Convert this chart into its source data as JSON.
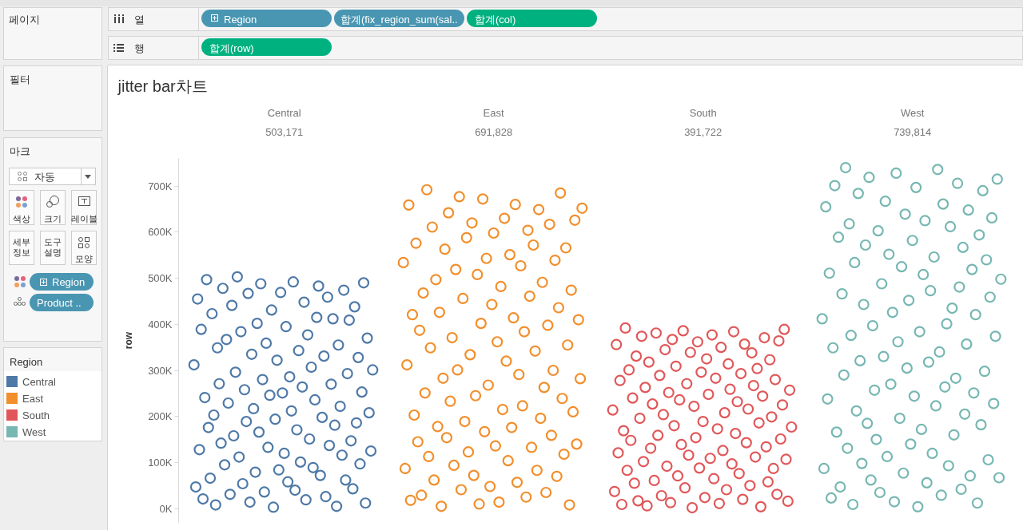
{
  "chart_data": {
    "type": "scatter",
    "title": "jitter bar차트",
    "ylabel": "row",
    "tick_labels": true,
    "marker": "circle",
    "legend": "left",
    "legend_title": "Region",
    "categories": [
      null,
      null,
      null,
      null,
      null,
      null,
      null,
      null,
      null,
      null,
      null,
      null,
      null,
      null,
      null,
      null,
      null,
      null,
      null,
      null,
      null,
      null,
      null,
      null,
      null,
      null,
      null,
      null,
      null,
      null,
      null,
      null,
      null,
      null,
      null,
      null,
      null,
      null,
      null,
      null,
      null,
      null,
      null,
      null,
      null,
      null,
      null,
      null,
      null,
      null,
      null,
      null,
      null,
      null,
      null,
      null,
      null,
      null,
      "Central\n503,171",
      null,
      null,
      null,
      null,
      null,
      null,
      null,
      null,
      null,
      null,
      null,
      null,
      null,
      null,
      null,
      null,
      null,
      null,
      null,
      null,
      null,
      null,
      null,
      null,
      null,
      null,
      null,
      null,
      null,
      null,
      null,
      null,
      null,
      null,
      null,
      null,
      null,
      null,
      null,
      null,
      null,
      null,
      null,
      null,
      null,
      null,
      null,
      null,
      null,
      null,
      null,
      null,
      null,
      null,
      null,
      null,
      null,
      null,
      null,
      null,
      null,
      null,
      null,
      null,
      null,
      null,
      null,
      null,
      null,
      null,
      null,
      null,
      null,
      null,
      null,
      null,
      null,
      null,
      null,
      null,
      null,
      null,
      null,
      null,
      null,
      null,
      null,
      null,
      null,
      null,
      null,
      null,
      null,
      null,
      null,
      null,
      null,
      null,
      null,
      null,
      null,
      null,
      null,
      null,
      null,
      null,
      null,
      null,
      null,
      null,
      null,
      null,
      null,
      null,
      null,
      "East\n691,828",
      null,
      null,
      null,
      null,
      null,
      null,
      null,
      null,
      null,
      null,
      null,
      null,
      null,
      null,
      null,
      null,
      null,
      null,
      null,
      null,
      null,
      null,
      null,
      null,
      null,
      null,
      null,
      null,
      null,
      null,
      null,
      null,
      null,
      null,
      null,
      null,
      null,
      null,
      null,
      null,
      null,
      null,
      null,
      null,
      null,
      null,
      null,
      null,
      null,
      null,
      null,
      null,
      null,
      null,
      null,
      null,
      null,
      null,
      null,
      null,
      null,
      null,
      null,
      null,
      null,
      null,
      null,
      null,
      null,
      null,
      null,
      null,
      null,
      null,
      null,
      null,
      null,
      null,
      null,
      null,
      null,
      null,
      null,
      null,
      null,
      null,
      null,
      null,
      null,
      null,
      null,
      null,
      null,
      null,
      null,
      null,
      null,
      null,
      null,
      null,
      null,
      null,
      null,
      null,
      null,
      null,
      null,
      null,
      null,
      null,
      null,
      null,
      null,
      null,
      null,
      "South\n391,722",
      null,
      null,
      null,
      null,
      null,
      null,
      null,
      null,
      null,
      null,
      null,
      null,
      null,
      null,
      null,
      null,
      null,
      null,
      null,
      null,
      null,
      null,
      null,
      null,
      null,
      null,
      null,
      null,
      null,
      null,
      null,
      null,
      null,
      null,
      null,
      null,
      null,
      null,
      null,
      null,
      null,
      null,
      null,
      null,
      null,
      null,
      null,
      null,
      null,
      null,
      null,
      null,
      null,
      null,
      null,
      null,
      null,
      null,
      null,
      null,
      null,
      null,
      null,
      null,
      null,
      null,
      null,
      null,
      null,
      null,
      null,
      null,
      null,
      null,
      null,
      null,
      null,
      null,
      null,
      null,
      null,
      null,
      null,
      null,
      null,
      null,
      null,
      null,
      null,
      null,
      null,
      null,
      null,
      null,
      null,
      null,
      null,
      null,
      null,
      null,
      null,
      null,
      null,
      null,
      null,
      null,
      null,
      null,
      null,
      null,
      null,
      null,
      null,
      null,
      null,
      "West\n739,814",
      null,
      null,
      null,
      null,
      null,
      null,
      null,
      null,
      null,
      null,
      null,
      null,
      null,
      null,
      null,
      null,
      null,
      null,
      null,
      null,
      null,
      null,
      null,
      null,
      null,
      null,
      null,
      null,
      null,
      null,
      null,
      null,
      null,
      null,
      null,
      null,
      null,
      null,
      null,
      null,
      null,
      null,
      null,
      null,
      null,
      null,
      null,
      null,
      null,
      null,
      null,
      null,
      null,
      null,
      null,
      null,
      null
    ],
    "ylim": [
      -30000,
      760000
    ],
    "yticks": [
      {
        "value": 0,
        "label": "0K"
      },
      {
        "value": 100000,
        "label": "100K"
      },
      {
        "value": 200000,
        "label": "200K"
      },
      {
        "value": 300000,
        "label": "300K"
      },
      {
        "value": 400000,
        "label": "400K"
      },
      {
        "value": 500000,
        "label": "500K"
      },
      {
        "value": 600000,
        "label": "600K"
      },
      {
        "value": 700000,
        "label": "700K"
      }
    ],
    "series": [
      {
        "name": "Central",
        "color": "#4e79a7",
        "values": [
          null,
          null,
          null,
          null,
          null,
          null,
          null,
          null,
          312000,
          47000,
          455000,
          128000,
          389000,
          21000,
          241000,
          497000,
          176000,
          66000,
          423000,
          203000,
          8000,
          349000,
          271000,
          142000,
          478000,
          95000,
          367000,
          229000,
          31000,
          441000,
          158000,
          296000,
          503000,
          112000,
          384000,
          54000,
          258000,
          189000,
          467000,
          14000,
          335000,
          217000,
          79000,
          402000,
          166000,
          488000,
          280000,
          36000,
          359000,
          133000,
          246000,
          431000,
          3000,
          194000,
          322000,
          84000,
          469000,
          251000,
          120000,
          395000,
          58000,
          286000,
          212000,
          492000,
          40000,
          171000,
          343000,
          101000,
          264000,
          448000,
          19000,
          377000,
          151000,
          307000,
          89000,
          236000,
          415000,
          483000,
          72000,
          198000,
          331000,
          26000,
          459000,
          137000,
          270000,
          412000,
          181000,
          5000,
          355000,
          222000,
          116000,
          474000,
          62000,
          293000,
          409000,
          147000,
          43000,
          438000,
          186000,
          328000,
          97000,
          253000,
          490000,
          12000,
          370000,
          208000,
          125000,
          301000,
          null,
          null,
          null,
          null,
          null,
          null,
          null,
          null,
          null,
          null,
          null,
          null,
          null,
          null,
          null,
          null,
          null,
          null,
          null,
          null,
          null,
          null,
          null,
          null,
          null,
          null,
          null,
          null,
          null,
          null,
          null,
          null,
          null,
          null,
          null,
          null,
          null,
          null,
          null,
          null,
          null,
          null,
          null,
          null,
          null,
          null,
          null,
          null,
          null,
          null,
          null,
          null,
          null,
          null,
          null,
          null,
          null,
          null,
          null,
          null,
          null,
          null,
          null,
          null,
          null,
          null,
          null,
          null,
          null,
          null,
          null,
          null,
          null,
          null,
          null,
          null,
          null,
          null,
          null,
          null,
          null,
          null,
          null,
          null,
          null,
          null,
          null,
          null,
          null,
          null,
          null,
          null,
          null,
          null,
          null,
          null,
          null,
          null,
          null,
          null,
          null,
          null,
          null,
          null,
          null,
          null,
          null,
          null,
          null,
          null,
          null,
          null,
          null,
          null,
          null,
          null,
          null,
          null,
          null,
          null,
          null,
          null,
          null,
          null,
          null,
          null,
          null,
          null,
          null,
          null,
          null,
          null,
          null,
          null,
          null,
          null,
          null,
          null,
          null,
          null,
          null,
          null,
          null,
          null,
          null,
          null,
          null,
          null,
          null,
          null,
          null,
          null,
          null,
          null,
          null,
          null,
          null,
          null,
          null,
          null,
          null,
          null,
          null,
          null,
          null,
          null,
          null,
          null,
          null,
          null,
          null,
          null,
          null,
          null,
          null,
          null,
          null,
          null,
          null,
          null,
          null,
          null,
          null,
          null,
          null,
          null,
          null,
          null,
          null,
          null,
          null,
          null,
          null,
          null,
          null,
          null,
          null,
          null,
          null,
          null,
          null,
          null,
          null,
          null,
          null,
          null,
          null,
          null,
          null,
          null,
          null,
          null,
          null,
          null,
          null,
          null,
          null,
          null,
          null,
          null,
          null,
          null,
          null,
          null,
          null,
          null,
          null,
          null,
          null,
          null,
          null,
          null,
          null,
          null,
          null,
          null,
          null,
          null,
          null,
          null,
          null,
          null,
          null,
          null,
          null,
          null,
          null,
          null,
          null,
          null,
          null,
          null,
          null,
          null,
          null,
          null,
          null,
          null,
          null,
          null,
          null,
          null,
          null,
          null,
          null,
          null,
          null,
          null,
          null,
          null,
          null,
          null,
          null,
          null,
          null,
          null,
          null,
          null,
          null,
          null,
          null,
          null,
          null,
          null,
          null,
          null,
          null,
          null,
          null,
          null,
          null,
          null,
          null,
          null,
          null,
          null,
          null,
          null,
          null,
          null,
          null,
          null,
          null,
          null,
          null,
          null,
          null,
          null,
          null,
          null,
          null,
          null,
          null,
          null,
          null,
          null,
          null,
          null,
          null,
          null,
          null,
          null,
          null,
          null,
          null,
          null,
          null,
          null,
          null,
          null,
          null,
          null,
          null,
          null,
          null,
          null,
          null,
          null,
          null,
          null,
          null,
          null,
          null,
          null,
          null,
          null,
          null,
          null,
          null,
          null,
          null,
          null,
          null,
          null,
          null,
          null
        ]
      },
      {
        "name": "East",
        "color": "#f28e2b",
        "values": [
          null,
          null,
          null,
          null,
          null,
          null,
          null,
          null,
          null,
          null,
          null,
          null,
          null,
          null,
          null,
          null,
          null,
          null,
          null,
          null,
          null,
          null,
          null,
          null,
          null,
          null,
          null,
          null,
          null,
          null,
          null,
          null,
          null,
          null,
          null,
          null,
          null,
          null,
          null,
          null,
          null,
          null,
          null,
          null,
          null,
          null,
          null,
          null,
          null,
          null,
          null,
          null,
          null,
          null,
          null,
          null,
          null,
          null,
          null,
          null,
          null,
          null,
          null,
          null,
          null,
          null,
          null,
          null,
          null,
          null,
          null,
          null,
          null,
          null,
          null,
          null,
          null,
          null,
          null,
          null,
          null,
          null,
          null,
          null,
          null,
          null,
          null,
          null,
          null,
          null,
          null,
          null,
          null,
          null,
          null,
          null,
          null,
          null,
          null,
          null,
          null,
          null,
          null,
          null,
          null,
          null,
          null,
          null,
          null,
          null,
          null,
          null,
          null,
          null,
          null,
          null,
          null,
          null,
          null,
          null,
          null,
          null,
          null,
          null,
          534000,
          87000,
          312000,
          659000,
          18000,
          421000,
          203000,
          576000,
          145000,
          387000,
          29000,
          468000,
          251000,
          692000,
          113000,
          349000,
          611000,
          62000,
          497000,
          178000,
          426000,
          5000,
          283000,
          563000,
          154000,
          642000,
          233000,
          371000,
          94000,
          519000,
          301000,
          677000,
          41000,
          456000,
          189000,
          588000,
          123000,
          334000,
          620000,
          72000,
          245000,
          508000,
          10000,
          402000,
          672000,
          167000,
          543000,
          268000,
          48000,
          443000,
          598000,
          136000,
          362000,
          14000,
          482000,
          215000,
          630000,
          320000,
          104000,
          551000,
          176000,
          414000,
          660000,
          57000,
          291000,
          527000,
          223000,
          384000,
          25000,
          604000,
          461000,
          133000,
          572000,
          342000,
          83000,
          649000,
          196000,
          491000,
          263000,
          35000,
          398000,
          617000,
          159000,
          300000,
          539000,
          70000,
          436000,
          685000,
          239000,
          118000,
          566000,
          355000,
          8000,
          474000,
          210000,
          626000,
          140000,
          410000,
          282000,
          652000,
          null,
          null,
          null,
          null,
          null,
          null,
          null,
          null,
          null,
          null,
          null,
          null,
          null,
          null,
          null,
          null,
          null,
          null,
          null,
          null,
          null,
          null,
          null,
          null,
          null,
          null,
          null,
          null,
          null,
          null,
          null,
          null,
          null,
          null,
          null,
          null,
          null,
          null,
          null,
          null,
          null,
          null,
          null,
          null,
          null,
          null,
          null,
          null,
          null,
          null,
          null,
          null,
          null,
          null,
          null,
          null,
          null,
          null,
          null,
          null,
          null,
          null,
          null,
          null,
          null,
          null,
          null,
          null,
          null,
          null,
          null,
          null,
          null,
          null,
          null,
          null,
          null,
          null,
          null,
          null,
          null,
          null,
          null,
          null,
          null,
          null,
          null,
          null,
          null,
          null,
          null,
          null,
          null,
          null,
          null,
          null,
          null,
          null,
          null,
          null,
          null,
          null,
          null,
          null,
          null,
          null,
          null,
          null,
          null,
          null,
          null,
          null,
          null,
          null,
          null,
          null,
          null,
          null,
          null,
          null,
          null,
          null,
          null,
          null,
          null,
          null,
          null,
          null,
          null,
          null,
          null,
          null,
          null,
          null,
          null,
          null,
          null,
          null,
          null,
          null,
          null,
          null,
          null,
          null,
          null,
          null,
          null,
          null,
          null,
          null,
          null,
          null,
          null,
          null,
          null,
          null,
          null,
          null,
          null,
          null,
          null,
          null,
          null,
          null,
          null,
          null,
          null,
          null,
          null,
          null,
          null,
          null,
          null,
          null,
          null,
          null,
          null,
          null,
          null,
          null,
          null,
          null,
          null,
          null,
          null,
          null,
          null,
          null,
          null,
          null,
          null,
          null,
          null,
          null,
          null,
          null,
          null,
          null,
          null,
          null,
          null,
          null,
          null,
          null,
          null,
          null,
          null,
          null,
          null,
          null,
          null,
          null,
          null,
          null,
          null,
          null,
          null,
          null,
          null,
          null,
          null,
          null,
          null,
          null,
          null,
          null,
          null,
          null,
          null,
          null,
          null,
          null,
          null,
          null,
          null,
          null,
          null,
          null,
          null,
          null
        ]
      },
      {
        "name": "South",
        "color": "#e15759",
        "values": [
          null,
          null,
          null,
          null,
          null,
          null,
          null,
          null,
          null,
          null,
          null,
          null,
          null,
          null,
          null,
          null,
          null,
          null,
          null,
          null,
          null,
          null,
          null,
          null,
          null,
          null,
          null,
          null,
          null,
          null,
          null,
          null,
          null,
          null,
          null,
          null,
          null,
          null,
          null,
          null,
          null,
          null,
          null,
          null,
          null,
          null,
          null,
          null,
          null,
          null,
          null,
          null,
          null,
          null,
          null,
          null,
          null,
          null,
          null,
          null,
          null,
          null,
          null,
          null,
          null,
          null,
          null,
          null,
          null,
          null,
          null,
          null,
          null,
          null,
          null,
          null,
          null,
          null,
          null,
          null,
          null,
          null,
          null,
          null,
          null,
          null,
          null,
          null,
          null,
          null,
          null,
          null,
          null,
          null,
          null,
          null,
          null,
          null,
          null,
          null,
          null,
          null,
          null,
          null,
          null,
          null,
          null,
          null,
          null,
          null,
          null,
          null,
          null,
          null,
          null,
          null,
          null,
          null,
          null,
          null,
          null,
          null,
          null,
          null,
          null,
          null,
          null,
          null,
          null,
          null,
          null,
          null,
          null,
          null,
          null,
          null,
          null,
          null,
          null,
          null,
          null,
          null,
          null,
          null,
          null,
          null,
          null,
          null,
          null,
          null,
          null,
          null,
          null,
          null,
          null,
          null,
          null,
          null,
          null,
          null,
          null,
          null,
          null,
          null,
          null,
          null,
          null,
          null,
          null,
          null,
          null,
          null,
          null,
          null,
          null,
          null,
          null,
          null,
          null,
          null,
          null,
          null,
          null,
          null,
          null,
          null,
          null,
          null,
          null,
          null,
          null,
          null,
          null,
          null,
          null,
          null,
          null,
          null,
          null,
          null,
          null,
          null,
          null,
          null,
          null,
          null,
          null,
          null,
          null,
          null,
          null,
          null,
          null,
          null,
          null,
          null,
          null,
          null,
          null,
          null,
          null,
          null,
          null,
          null,
          null,
          null,
          null,
          null,
          null,
          null,
          null,
          null,
          null,
          null,
          null,
          null,
          null,
          null,
          null,
          null,
          214000,
          37000,
          356000,
          121000,
          278000,
          9000,
          169000,
          392000,
          83000,
          301000,
          148000,
          240000,
          55000,
          331000,
          17000,
          196000,
          374000,
          102000,
          263000,
          6000,
          318000,
          131000,
          227000,
          61000,
          381000,
          159000,
          289000,
          28000,
          204000,
          345000,
          92000,
          252000,
          13000,
          367000,
          180000,
          309000,
          71000,
          236000,
          139000,
          386000,
          45000,
          271000,
          116000,
          339000,
          2000,
          222000,
          154000,
          362000,
          88000,
          296000,
          189000,
          24000,
          325000,
          248000,
          109000,
          377000,
          65000,
          283000,
          173000,
          11000,
          350000,
          126000,
          208000,
          41000,
          314000,
          259000,
          97000,
          384000,
          163000,
          232000,
          76000,
          293000,
          20000,
          357000,
          143000,
          216000,
          50000,
          338000,
          267000,
          112000,
          304000,
          186000,
          4000,
          244000,
          371000,
          134000,
          58000,
          323000,
          199000,
          87000,
          280000,
          31000,
          364000,
          151000,
          225000,
          389000,
          107000,
          16000,
          257000,
          177000,
          null,
          null,
          null,
          null,
          null,
          null,
          null,
          null,
          null,
          null,
          null,
          null,
          null,
          null,
          null,
          null,
          null,
          null,
          null,
          null,
          null,
          null,
          null,
          null,
          null,
          null,
          null,
          null,
          null,
          null,
          null,
          null,
          null,
          null,
          null,
          null,
          null,
          null,
          null,
          null,
          null,
          null,
          null,
          null,
          null,
          null,
          null,
          null,
          null,
          null,
          null,
          null,
          null,
          null,
          null,
          null,
          null,
          null,
          null,
          null,
          null,
          null,
          null,
          null,
          null,
          null,
          null,
          null,
          null,
          null,
          null,
          null,
          null,
          null,
          null,
          null,
          null,
          null,
          null,
          null,
          null,
          null,
          null,
          null,
          null,
          null,
          null,
          null,
          null,
          null,
          null,
          null,
          null,
          null,
          null,
          null,
          null,
          null,
          null,
          null,
          null,
          null,
          null,
          null,
          null,
          null,
          null,
          null,
          null,
          null,
          null,
          null,
          null,
          null,
          null,
          null,
          null,
          null,
          null,
          null,
          null,
          null,
          null,
          null
        ]
      },
      {
        "name": "West",
        "color": "#76b7b2",
        "values": [
          null,
          null,
          null,
          null,
          null,
          null,
          null,
          null,
          null,
          null,
          null,
          null,
          null,
          null,
          null,
          null,
          null,
          null,
          null,
          null,
          null,
          null,
          null,
          null,
          null,
          null,
          null,
          null,
          null,
          null,
          null,
          null,
          null,
          null,
          null,
          null,
          null,
          null,
          null,
          null,
          null,
          null,
          null,
          null,
          null,
          null,
          null,
          null,
          null,
          null,
          null,
          null,
          null,
          null,
          null,
          null,
          null,
          null,
          null,
          null,
          null,
          null,
          null,
          null,
          null,
          null,
          null,
          null,
          null,
          null,
          null,
          null,
          null,
          null,
          null,
          null,
          null,
          null,
          null,
          null,
          null,
          null,
          null,
          null,
          null,
          null,
          null,
          null,
          null,
          null,
          null,
          null,
          null,
          null,
          null,
          null,
          null,
          null,
          null,
          null,
          null,
          null,
          null,
          null,
          null,
          null,
          null,
          null,
          null,
          null,
          null,
          null,
          null,
          null,
          null,
          null,
          null,
          null,
          null,
          null,
          null,
          null,
          null,
          null,
          null,
          null,
          null,
          null,
          null,
          null,
          null,
          null,
          null,
          null,
          null,
          null,
          null,
          null,
          null,
          null,
          null,
          null,
          null,
          null,
          null,
          null,
          null,
          null,
          null,
          null,
          null,
          null,
          null,
          null,
          null,
          null,
          null,
          null,
          null,
          null,
          null,
          null,
          null,
          null,
          null,
          null,
          null,
          null,
          null,
          null,
          null,
          null,
          null,
          null,
          null,
          null,
          null,
          null,
          null,
          null,
          null,
          null,
          null,
          null,
          null,
          null,
          null,
          null,
          null,
          null,
          null,
          null,
          null,
          null,
          null,
          null,
          null,
          null,
          null,
          null,
          null,
          null,
          null,
          null,
          null,
          null,
          null,
          null,
          null,
          null,
          null,
          null,
          null,
          null,
          null,
          null,
          null,
          null,
          null,
          null,
          null,
          null,
          null,
          null,
          null,
          null,
          null,
          null,
          null,
          null,
          null,
          null,
          null,
          null,
          null,
          null,
          null,
          null,
          null,
          null,
          null,
          null,
          null,
          null,
          null,
          null,
          null,
          null,
          null,
          null,
          null,
          null,
          null,
          null,
          null,
          null,
          null,
          null,
          null,
          null,
          null,
          null,
          null,
          null,
          null,
          null,
          null,
          null,
          null,
          null,
          null,
          null,
          null,
          null,
          null,
          null,
          null,
          null,
          null,
          null,
          null,
          null,
          null,
          null,
          null,
          null,
          null,
          null,
          null,
          null,
          null,
          null,
          null,
          null,
          null,
          null,
          null,
          null,
          null,
          null,
          null,
          null,
          null,
          null,
          null,
          null,
          null,
          null,
          null,
          null,
          null,
          null,
          null,
          null,
          null,
          null,
          null,
          null,
          null,
          null,
          null,
          null,
          null,
          null,
          null,
          null,
          null,
          null,
          null,
          null,
          null,
          null,
          null,
          null,
          null,
          null,
          null,
          null,
          null,
          null,
          null,
          null,
          null,
          null,
          null,
          null,
          null,
          null,
          null,
          null,
          null,
          null,
          null,
          null,
          null,
          null,
          412000,
          87000,
          655000,
          238000,
          511000,
          23000,
          349000,
          701000,
          166000,
          589000,
          47000,
          466000,
          290000,
          740000,
          131000,
          618000,
          376000,
          9000,
          534000,
          212000,
          684000,
          321000,
          98000,
          443000,
          572000,
          185000,
          719000,
          62000,
          397000,
          257000,
          150000,
          603000,
          35000,
          488000,
          330000,
          667000,
          113000,
          552000,
          270000,
          426000,
          15000,
          728000,
          362000,
          196000,
          525000,
          77000,
          639000,
          305000,
          452000,
          140000,
          582000,
          244000,
          697000,
          4000,
          384000,
          172000,
          508000,
          625000,
          56000,
          318000,
          473000,
          120000,
          546000,
          223000,
          736000,
          340000,
          29000,
          661000,
          264000,
          401000,
          93000,
          612000,
          435000,
          160000,
          283000,
          706000,
          481000,
          42000,
          567000,
          205000,
          357000,
          648000,
          71000,
          519000,
          251000,
          421000,
          12000,
          594000,
          182000,
          690000,
          298000,
          540000,
          106000,
          459000,
          631000,
          228000,
          374000,
          715000,
          67000,
          498000,
          null,
          null,
          null,
          null,
          null,
          null,
          null,
          null
        ]
      }
    ],
    "annotations": [
      "페이지",
      "필터",
      "마크",
      "자동",
      "색상",
      "크기",
      "레이블",
      "세부\n정보",
      "도구\n설명",
      "모양",
      "Region",
      "Product ..",
      "열",
      "행",
      "Region",
      "합계(fix_region_sum(sal..",
      "합계(col)",
      "합계(row)"
    ]
  }
}
